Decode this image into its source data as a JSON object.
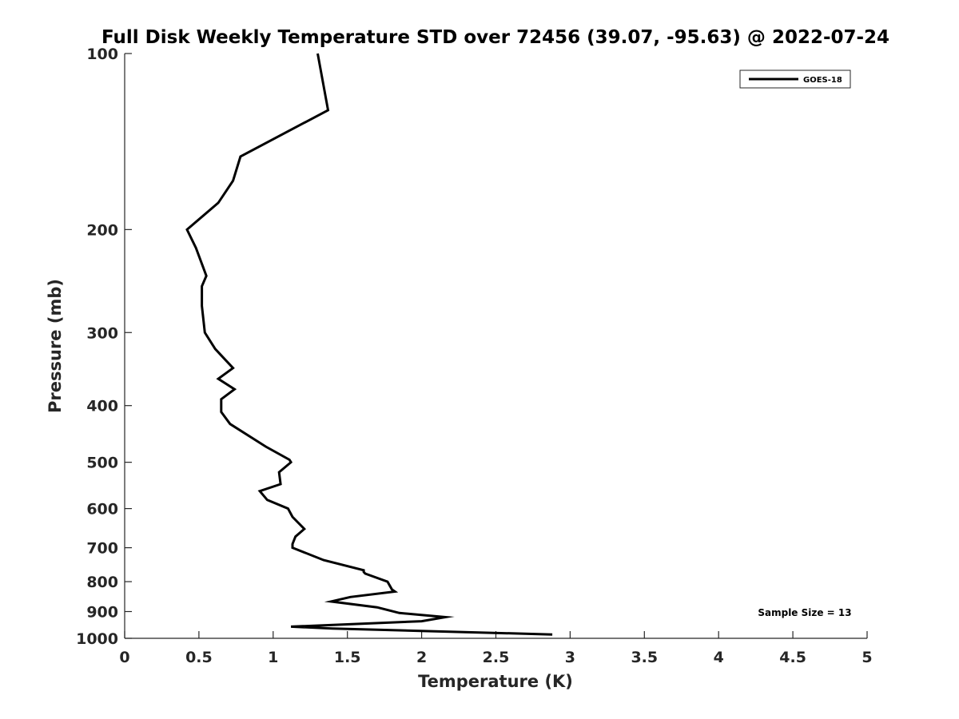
{
  "chart_data": {
    "type": "line",
    "title": "Full Disk Weekly Temperature STD over 72456 (39.07, -95.63) @ 2022-07-24",
    "xlabel": "Temperature (K)",
    "ylabel": "Pressure (mb)",
    "xlim": [
      0,
      5
    ],
    "ylim": [
      100,
      1000
    ],
    "y_scale": "log",
    "y_reversed": true,
    "x_ticks": [
      "0",
      "0.5",
      "1",
      "1.5",
      "2",
      "2.5",
      "3",
      "3.5",
      "4",
      "4.5",
      "5"
    ],
    "y_ticks": [
      "100",
      "200",
      "300",
      "400",
      "500",
      "600",
      "700",
      "800",
      "900",
      "1000"
    ],
    "grid": false,
    "legend_position": "top-right",
    "series": [
      {
        "name": "GOES-18",
        "color": "#000000",
        "points": [
          [
            1.3,
            100
          ],
          [
            1.37,
            125
          ],
          [
            0.78,
            150
          ],
          [
            0.73,
            165
          ],
          [
            0.63,
            180
          ],
          [
            0.42,
            200
          ],
          [
            0.48,
            215
          ],
          [
            0.55,
            240
          ],
          [
            0.52,
            250
          ],
          [
            0.52,
            270
          ],
          [
            0.54,
            300
          ],
          [
            0.61,
            320
          ],
          [
            0.73,
            345
          ],
          [
            0.63,
            360
          ],
          [
            0.74,
            375
          ],
          [
            0.65,
            390
          ],
          [
            0.65,
            410
          ],
          [
            0.71,
            430
          ],
          [
            0.95,
            470
          ],
          [
            1.11,
            495
          ],
          [
            1.12,
            500
          ],
          [
            1.04,
            520
          ],
          [
            1.05,
            545
          ],
          [
            0.91,
            560
          ],
          [
            0.96,
            580
          ],
          [
            1.1,
            600
          ],
          [
            1.13,
            620
          ],
          [
            1.21,
            650
          ],
          [
            1.15,
            670
          ],
          [
            1.13,
            690
          ],
          [
            1.13,
            700
          ],
          [
            1.34,
            735
          ],
          [
            1.61,
            765
          ],
          [
            1.61,
            770
          ],
          [
            1.62,
            775
          ],
          [
            1.77,
            800
          ],
          [
            1.8,
            825
          ],
          [
            1.82,
            832
          ],
          [
            1.52,
            850
          ],
          [
            1.39,
            865
          ],
          [
            1.7,
            885
          ],
          [
            1.85,
            905
          ],
          [
            2.16,
            920
          ],
          [
            2.0,
            935
          ],
          [
            1.12,
            955
          ],
          [
            1.4,
            962
          ],
          [
            2.88,
            985
          ]
        ]
      }
    ],
    "annotation": "Sample Size = 13"
  }
}
